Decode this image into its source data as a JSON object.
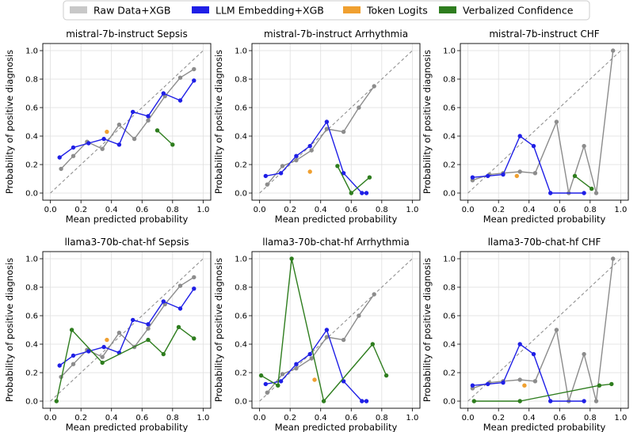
{
  "legend": [
    {
      "label": "Raw Data+XGB",
      "color": "#c8c8c8"
    },
    {
      "label": "LLM Embedding+XGB",
      "color": "#1f1fe6"
    },
    {
      "label": "Token Logits",
      "color": "#f0a030"
    },
    {
      "label": "Verbalized Confidence",
      "color": "#2e7d1e"
    }
  ],
  "colors": {
    "raw_line": "#8c8c8c",
    "raw_marker": "#8c8c8c",
    "llm": "#1f1fe6",
    "token": "#f0a030",
    "verbal": "#2e7d1e",
    "diag": "#888888"
  },
  "chart_data": [
    {
      "type": "line",
      "title": "mistral-7b-instruct Sepsis",
      "xlabel": "Mean predicted probability",
      "ylabel": "Probability of positive diagnosis",
      "xlim": [
        -0.05,
        1.05
      ],
      "ylim": [
        -0.05,
        1.05
      ],
      "xticks": [
        "0.0",
        "0.2",
        "0.4",
        "0.6",
        "0.8",
        "1.0"
      ],
      "yticks": [
        "0.0",
        "0.2",
        "0.4",
        "0.6",
        "0.8",
        "1.0"
      ],
      "grid": true,
      "series": [
        {
          "name": "Raw Data+XGB",
          "x": [
            0.07,
            0.15,
            0.24,
            0.34,
            0.45,
            0.55,
            0.64,
            0.75,
            0.85,
            0.94
          ],
          "y": [
            0.17,
            0.26,
            0.36,
            0.31,
            0.48,
            0.38,
            0.51,
            0.68,
            0.81,
            0.87
          ]
        },
        {
          "name": "LLM Embedding+XGB",
          "x": [
            0.06,
            0.15,
            0.25,
            0.35,
            0.45,
            0.54,
            0.64,
            0.74,
            0.85,
            0.94
          ],
          "y": [
            0.25,
            0.32,
            0.35,
            0.38,
            0.34,
            0.57,
            0.54,
            0.7,
            0.65,
            0.79
          ]
        },
        {
          "name": "Token Logits",
          "x": [
            0.37
          ],
          "y": [
            0.43
          ]
        },
        {
          "name": "Verbalized Confidence",
          "x": [
            0.7,
            0.8
          ],
          "y": [
            0.44,
            0.34
          ]
        }
      ]
    },
    {
      "type": "line",
      "title": "mistral-7b-instruct Arrhythmia",
      "xlabel": "Mean predicted probability",
      "ylabel": "Probability of positive diagnosis",
      "xlim": [
        -0.05,
        1.05
      ],
      "ylim": [
        -0.05,
        1.05
      ],
      "xticks": [
        "0.0",
        "0.2",
        "0.4",
        "0.6",
        "0.8",
        "1.0"
      ],
      "yticks": [
        "0.0",
        "0.2",
        "0.4",
        "0.6",
        "0.8",
        "1.0"
      ],
      "grid": true,
      "series": [
        {
          "name": "Raw Data+XGB",
          "x": [
            0.05,
            0.15,
            0.24,
            0.34,
            0.44,
            0.55,
            0.65,
            0.75
          ],
          "y": [
            0.06,
            0.19,
            0.23,
            0.3,
            0.45,
            0.43,
            0.6,
            0.75
          ]
        },
        {
          "name": "LLM Embedding+XGB",
          "x": [
            0.04,
            0.14,
            0.24,
            0.33,
            0.44,
            0.55,
            0.67,
            0.7
          ],
          "y": [
            0.12,
            0.14,
            0.26,
            0.33,
            0.5,
            0.14,
            0.0,
            0.0
          ]
        },
        {
          "name": "Token Logits",
          "x": [
            0.33
          ],
          "y": [
            0.15
          ]
        },
        {
          "name": "Verbalized Confidence",
          "x": [
            0.51,
            0.6,
            0.72
          ],
          "y": [
            0.19,
            0.0,
            0.11
          ]
        }
      ]
    },
    {
      "type": "line",
      "title": "mistral-7b-instruct CHF",
      "xlabel": "Mean predicted probability",
      "ylabel": "Probability of positive diagnosis",
      "xlim": [
        -0.05,
        1.05
      ],
      "ylim": [
        -0.05,
        1.05
      ],
      "xticks": [
        "0.0",
        "0.2",
        "0.4",
        "0.6",
        "0.8",
        "1.0"
      ],
      "yticks": [
        "0.0",
        "0.2",
        "0.4",
        "0.6",
        "0.8",
        "1.0"
      ],
      "grid": true,
      "series": [
        {
          "name": "Raw Data+XGB",
          "x": [
            0.03,
            0.14,
            0.23,
            0.34,
            0.44,
            0.58,
            0.66,
            0.76,
            0.84,
            0.95
          ],
          "y": [
            0.09,
            0.13,
            0.14,
            0.15,
            0.14,
            0.5,
            0.0,
            0.33,
            0.0,
            1.0
          ]
        },
        {
          "name": "LLM Embedding+XGB",
          "x": [
            0.03,
            0.13,
            0.23,
            0.34,
            0.43,
            0.54,
            0.76
          ],
          "y": [
            0.11,
            0.12,
            0.13,
            0.4,
            0.33,
            0.0,
            0.0
          ]
        },
        {
          "name": "Token Logits",
          "x": [
            0.32
          ],
          "y": [
            0.12
          ]
        },
        {
          "name": "Verbalized Confidence",
          "x": [
            0.7,
            0.81
          ],
          "y": [
            0.12,
            0.03
          ]
        }
      ]
    },
    {
      "type": "line",
      "title": "llama3-70b-chat-hf Sepsis",
      "xlabel": "Mean predicted probability",
      "ylabel": "Probability of positive diagnosis",
      "xlim": [
        -0.05,
        1.05
      ],
      "ylim": [
        -0.05,
        1.05
      ],
      "xticks": [
        "0.0",
        "0.2",
        "0.4",
        "0.6",
        "0.8",
        "1.0"
      ],
      "yticks": [
        "0.0",
        "0.2",
        "0.4",
        "0.6",
        "0.8",
        "1.0"
      ],
      "grid": true,
      "series": [
        {
          "name": "Raw Data+XGB",
          "x": [
            0.07,
            0.15,
            0.24,
            0.34,
            0.45,
            0.55,
            0.64,
            0.75,
            0.85,
            0.94
          ],
          "y": [
            0.17,
            0.26,
            0.36,
            0.31,
            0.48,
            0.38,
            0.51,
            0.68,
            0.81,
            0.87
          ]
        },
        {
          "name": "LLM Embedding+XGB",
          "x": [
            0.06,
            0.15,
            0.25,
            0.35,
            0.45,
            0.54,
            0.64,
            0.74,
            0.85,
            0.94
          ],
          "y": [
            0.25,
            0.32,
            0.35,
            0.38,
            0.34,
            0.57,
            0.54,
            0.7,
            0.65,
            0.79
          ]
        },
        {
          "name": "Token Logits",
          "x": [
            0.37
          ],
          "y": [
            0.43
          ]
        },
        {
          "name": "Verbalized Confidence",
          "x": [
            0.04,
            0.14,
            0.34,
            0.64,
            0.74,
            0.84,
            0.94
          ],
          "y": [
            0.0,
            0.5,
            0.27,
            0.43,
            0.33,
            0.52,
            0.44
          ]
        }
      ]
    },
    {
      "type": "line",
      "title": "llama3-70b-chat-hf Arrhythmia",
      "xlabel": "Mean predicted probability",
      "ylabel": "Probability of positive diagnosis",
      "xlim": [
        -0.05,
        1.05
      ],
      "ylim": [
        -0.05,
        1.05
      ],
      "xticks": [
        "0.0",
        "0.2",
        "0.4",
        "0.6",
        "0.8",
        "1.0"
      ],
      "yticks": [
        "0.0",
        "0.2",
        "0.4",
        "0.6",
        "0.8",
        "1.0"
      ],
      "grid": true,
      "series": [
        {
          "name": "Raw Data+XGB",
          "x": [
            0.05,
            0.15,
            0.24,
            0.34,
            0.44,
            0.55,
            0.65,
            0.75
          ],
          "y": [
            0.06,
            0.19,
            0.23,
            0.3,
            0.45,
            0.43,
            0.6,
            0.75
          ]
        },
        {
          "name": "LLM Embedding+XGB",
          "x": [
            0.04,
            0.14,
            0.24,
            0.33,
            0.44,
            0.55,
            0.67,
            0.7
          ],
          "y": [
            0.12,
            0.14,
            0.26,
            0.33,
            0.5,
            0.14,
            0.0,
            0.0
          ]
        },
        {
          "name": "Token Logits",
          "x": [
            0.36
          ],
          "y": [
            0.15
          ]
        },
        {
          "name": "Verbalized Confidence",
          "x": [
            0.01,
            0.12,
            0.21,
            0.42,
            0.74,
            0.83
          ],
          "y": [
            0.18,
            0.11,
            1.0,
            0.0,
            0.4,
            0.18
          ]
        }
      ]
    },
    {
      "type": "line",
      "title": "llama3-70b-chat-hf CHF",
      "xlabel": "Mean predicted probability",
      "ylabel": "Probability of positive diagnosis",
      "xlim": [
        -0.05,
        1.05
      ],
      "ylim": [
        -0.05,
        1.05
      ],
      "xticks": [
        "0.0",
        "0.2",
        "0.4",
        "0.6",
        "0.8",
        "1.0"
      ],
      "yticks": [
        "0.0",
        "0.2",
        "0.4",
        "0.6",
        "0.8",
        "1.0"
      ],
      "grid": true,
      "series": [
        {
          "name": "Raw Data+XGB",
          "x": [
            0.03,
            0.14,
            0.23,
            0.34,
            0.44,
            0.58,
            0.66,
            0.76,
            0.84,
            0.95
          ],
          "y": [
            0.09,
            0.13,
            0.14,
            0.15,
            0.14,
            0.5,
            0.0,
            0.33,
            0.0,
            1.0
          ]
        },
        {
          "name": "LLM Embedding+XGB",
          "x": [
            0.03,
            0.13,
            0.23,
            0.34,
            0.43,
            0.54,
            0.76
          ],
          "y": [
            0.11,
            0.12,
            0.13,
            0.4,
            0.33,
            0.0,
            0.0
          ]
        },
        {
          "name": "Token Logits",
          "x": [
            0.37
          ],
          "y": [
            0.11
          ]
        },
        {
          "name": "Verbalized Confidence",
          "x": [
            0.04,
            0.34,
            0.86,
            0.94
          ],
          "y": [
            0.0,
            0.0,
            0.11,
            0.12
          ]
        }
      ]
    }
  ]
}
